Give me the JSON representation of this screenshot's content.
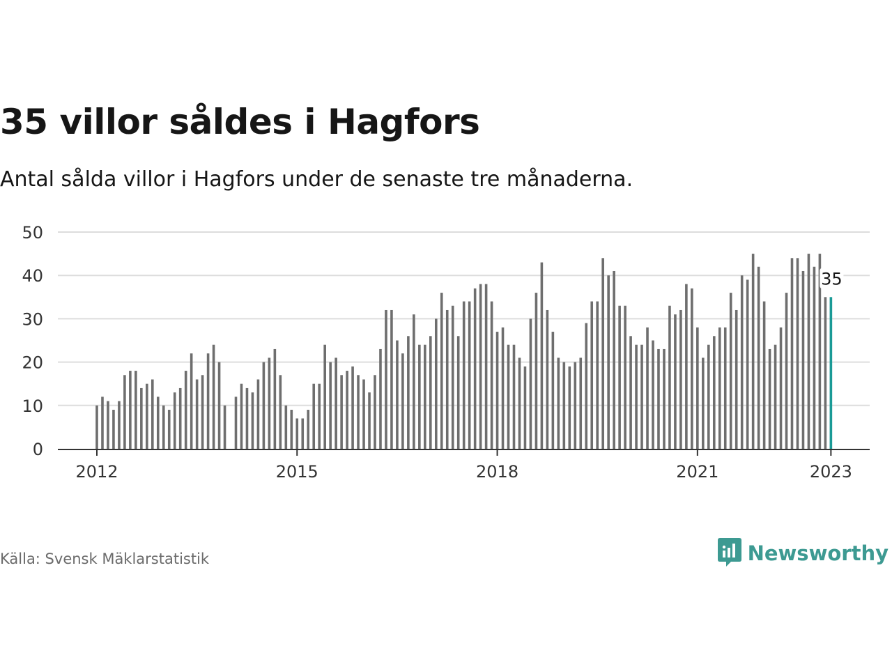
{
  "title": "35 villor såldes i Hagfors",
  "subtitle": "Antal sålda villor i Hagfors under de senaste tre månaderna.",
  "source": "Källa: Svensk Mäklarstatistik",
  "brand": {
    "name": "Newsworthy",
    "icon": "newsworthy-logo-icon",
    "color": "#3d9a92"
  },
  "colors": {
    "bar": "#6e6e6e",
    "highlight": "#1a9a96",
    "grid": "#dddddd",
    "axis": "#333333"
  },
  "chart_data": {
    "type": "bar",
    "title": "35 villor såldes i Hagfors",
    "subtitle": "Antal sålda villor i Hagfors under de senaste tre månaderna.",
    "xlabel": "",
    "ylabel": "",
    "ylim": [
      0,
      50
    ],
    "yticks": [
      0,
      10,
      20,
      30,
      40,
      50
    ],
    "xticks": [
      {
        "label": "2012",
        "index": 0
      },
      {
        "label": "2015",
        "index": 36
      },
      {
        "label": "2018",
        "index": 72
      },
      {
        "label": "2021",
        "index": 108
      },
      {
        "label": "2023",
        "index": 132
      }
    ],
    "grid": true,
    "annotation": {
      "index": 132,
      "text": "35"
    },
    "start": "2012-01",
    "frequency": "monthly",
    "values": [
      10,
      12,
      11,
      9,
      11,
      17,
      18,
      18,
      14,
      15,
      16,
      12,
      10,
      9,
      13,
      14,
      18,
      22,
      16,
      17,
      22,
      24,
      20,
      10,
      null,
      12,
      15,
      14,
      13,
      16,
      20,
      21,
      23,
      17,
      10,
      9,
      7,
      7,
      9,
      15,
      15,
      24,
      20,
      21,
      17,
      18,
      19,
      17,
      16,
      13,
      17,
      23,
      32,
      32,
      25,
      22,
      26,
      31,
      24,
      24,
      26,
      30,
      36,
      32,
      33,
      26,
      34,
      34,
      37,
      38,
      38,
      34,
      27,
      28,
      24,
      24,
      21,
      19,
      30,
      36,
      43,
      32,
      27,
      21,
      20,
      19,
      20,
      21,
      29,
      34,
      34,
      44,
      40,
      41,
      33,
      33,
      26,
      24,
      24,
      28,
      25,
      23,
      23,
      33,
      31,
      32,
      38,
      37,
      28,
      21,
      24,
      26,
      28,
      28,
      36,
      32,
      40,
      39,
      45,
      42,
      34,
      23,
      24,
      28,
      36,
      44,
      44,
      41,
      45,
      42,
      45,
      35,
      35
    ]
  }
}
